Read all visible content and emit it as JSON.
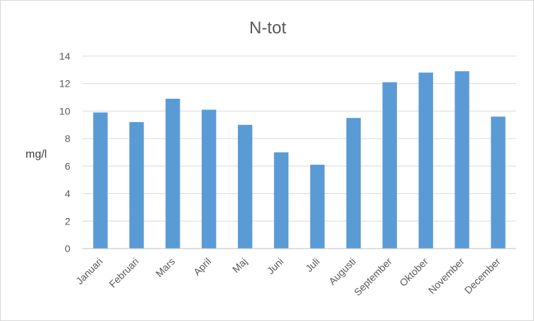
{
  "chart_data": {
    "type": "bar",
    "title": "N-tot",
    "xlabel": "",
    "ylabel": "mg/l",
    "ylim": [
      0,
      14
    ],
    "yticks": [
      0,
      2,
      4,
      6,
      8,
      10,
      12,
      14
    ],
    "grid": true,
    "legend": "none",
    "bar_color": "#5b9bd5",
    "categories": [
      "Januari",
      "Februari",
      "Mars",
      "April",
      "Maj",
      "Juni",
      "Juli",
      "Augusti",
      "September",
      "Oktober",
      "November",
      "December"
    ],
    "values": [
      9.9,
      9.2,
      10.9,
      10.1,
      9.0,
      7.0,
      6.1,
      9.5,
      12.1,
      12.8,
      12.9,
      9.6
    ]
  }
}
